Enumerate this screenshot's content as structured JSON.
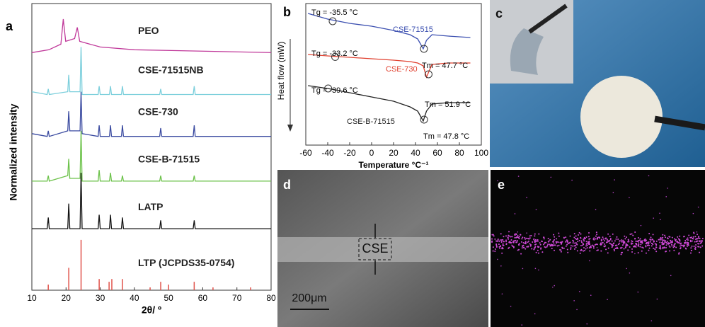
{
  "chart_data": [
    {
      "type": "line",
      "panel": "a",
      "xlabel": "2θ/ º",
      "ylabel": "Normalized intensity",
      "xlim": [
        10,
        80
      ],
      "xticks": [
        10,
        20,
        30,
        40,
        50,
        60,
        70,
        80
      ],
      "ylim": [
        0,
        100
      ],
      "x": [
        10,
        14.5,
        14.8,
        15.1,
        20.5,
        20.8,
        21.1,
        24.1,
        24.4,
        24.7,
        29.4,
        29.7,
        30,
        32.7,
        33,
        33.3,
        36.2,
        36.5,
        36.8,
        47.4,
        47.7,
        48,
        57.2,
        57.5,
        57.8,
        80
      ],
      "series": [
        {
          "name": "PEO",
          "color": "#c0399a",
          "x": [
            10,
            15,
            18.5,
            19.2,
            19.9,
            22.5,
            23.3,
            24,
            30,
            40,
            80
          ],
          "values": [
            85,
            86,
            88,
            97,
            89,
            90,
            94,
            89,
            87,
            86,
            85
          ]
        },
        {
          "name": "CSE-71515NB",
          "color": "#7ccfdc",
          "values": [
            71,
            70,
            72,
            70,
            71,
            77,
            71,
            71,
            87,
            70,
            70,
            73,
            70,
            70,
            73,
            70,
            70,
            73,
            70,
            70,
            72,
            70,
            70,
            73,
            70,
            70
          ]
        },
        {
          "name": "CSE-730",
          "color": "#3a4aa0",
          "values": [
            56,
            55,
            57,
            55,
            57,
            64,
            57,
            57,
            71,
            56,
            55,
            59,
            55,
            55,
            59,
            55,
            55,
            59,
            55,
            55,
            58,
            55,
            55,
            59,
            55,
            55
          ]
        },
        {
          "name": "CSE-B-71515",
          "color": "#6cc24a",
          "values": [
            39,
            39,
            41,
            39,
            41,
            47,
            40,
            40,
            57,
            39,
            39,
            43,
            39,
            39,
            42,
            39,
            39,
            41,
            39,
            39,
            41,
            39,
            39,
            41,
            39,
            39
          ]
        },
        {
          "name": "LATP",
          "color": "#111111",
          "values": [
            22,
            22,
            26,
            22,
            22,
            31,
            22,
            22,
            42,
            22,
            22,
            27,
            22,
            22,
            27,
            22,
            22,
            26,
            22,
            22,
            25,
            22,
            22,
            25,
            22,
            22
          ]
        },
        {
          "name": "LTP (JCPDS35-0754)",
          "color": "#e0524a",
          "style": "stick",
          "x": [
            14.8,
            20.8,
            24.4,
            29.7,
            32.6,
            33.4,
            36.5,
            44.6,
            47.7,
            50,
            57.5,
            63,
            74
          ],
          "values": [
            2,
            8,
            18,
            4,
            3,
            4,
            4,
            1,
            3,
            2,
            3,
            1,
            1
          ]
        }
      ]
    },
    {
      "type": "line",
      "panel": "b",
      "xlabel": "Temperature °C⁻¹",
      "ylabel": "Heat flow (mW)",
      "xlim": [
        -60,
        100
      ],
      "xticks": [
        -60,
        -40,
        -20,
        0,
        20,
        40,
        60,
        80,
        100
      ],
      "ylim": [
        0,
        100
      ],
      "x": [
        -58,
        -40,
        -20,
        0,
        20,
        35,
        42,
        47,
        50,
        55,
        70,
        90
      ],
      "series": [
        {
          "name": "CSE-71515",
          "color": "#3b4fb0",
          "values": [
            93,
            89,
            86,
            84,
            81,
            78,
            75,
            68,
            74,
            78,
            77,
            76
          ]
        },
        {
          "name": "CSE-730",
          "color": "#e0402f",
          "values": [
            64,
            63,
            62,
            61,
            60,
            59,
            58,
            56,
            48,
            57,
            58,
            58
          ]
        },
        {
          "name": "CSE-B-71515",
          "color": "#222222",
          "values": [
            42,
            40,
            37,
            34,
            31,
            27,
            24,
            17,
            24,
            29,
            30,
            30
          ]
        }
      ],
      "annotations": [
        "Tg = -35.5 °C",
        "Tm = 47.7 °C",
        "Tg = -33.2 °C",
        "Tm = 51.9 °C",
        "Tg = -39.6 °C",
        "Tm = 47.8 °C"
      ]
    }
  ],
  "images": [
    {
      "panel": "c"
    },
    {
      "panel": "d",
      "annotations": [
        "CSE",
        "200μm"
      ]
    },
    {
      "panel": "e"
    }
  ]
}
